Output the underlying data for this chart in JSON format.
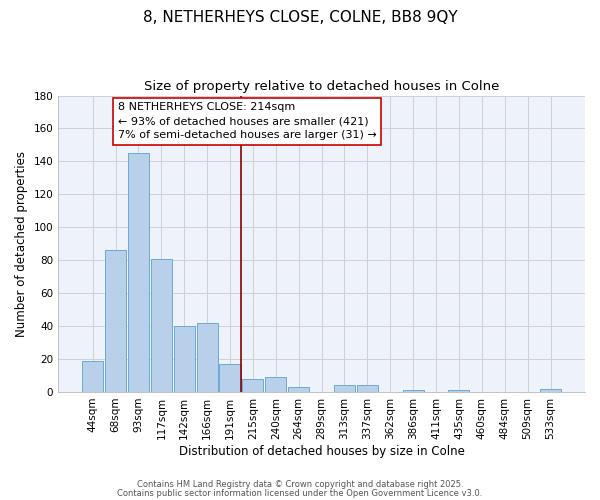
{
  "title": "8, NETHERHEYS CLOSE, COLNE, BB8 9QY",
  "subtitle": "Size of property relative to detached houses in Colne",
  "xlabel": "Distribution of detached houses by size in Colne",
  "ylabel": "Number of detached properties",
  "categories": [
    "44sqm",
    "68sqm",
    "93sqm",
    "117sqm",
    "142sqm",
    "166sqm",
    "191sqm",
    "215sqm",
    "240sqm",
    "264sqm",
    "289sqm",
    "313sqm",
    "337sqm",
    "362sqm",
    "386sqm",
    "411sqm",
    "435sqm",
    "460sqm",
    "484sqm",
    "509sqm",
    "533sqm"
  ],
  "values": [
    19,
    86,
    145,
    81,
    40,
    42,
    17,
    8,
    9,
    3,
    0,
    4,
    4,
    0,
    1,
    0,
    1,
    0,
    0,
    0,
    2
  ],
  "bar_color": "#b8d0ea",
  "bar_edge_color": "#6aaad4",
  "vline_color": "#8b0000",
  "annotation_lines": [
    "8 NETHERHEYS CLOSE: 214sqm",
    "← 93% of detached houses are smaller (421)",
    "7% of semi-detached houses are larger (31) →"
  ],
  "annotation_box_color": "#ffffff",
  "annotation_box_edge": "#cc0000",
  "ylim": [
    0,
    180
  ],
  "yticks": [
    0,
    20,
    40,
    60,
    80,
    100,
    120,
    140,
    160,
    180
  ],
  "footer1": "Contains HM Land Registry data © Crown copyright and database right 2025.",
  "footer2": "Contains public sector information licensed under the Open Government Licence v3.0.",
  "bg_color": "#eef2fb",
  "grid_color": "#d0d0d0",
  "title_fontsize": 11,
  "subtitle_fontsize": 9.5,
  "label_fontsize": 8.5,
  "tick_fontsize": 7.5,
  "annotation_fontsize": 8
}
